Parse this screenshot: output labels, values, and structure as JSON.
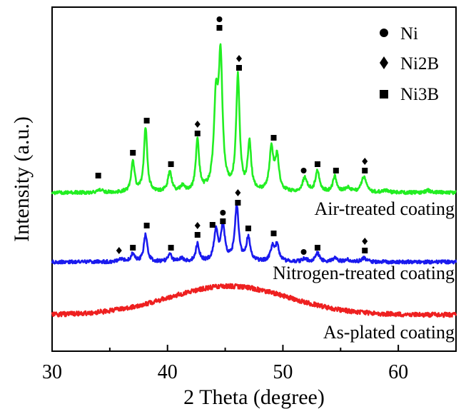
{
  "chart_data": {
    "type": "line",
    "xlabel": "2 Theta (degree)",
    "ylabel": "Intensity (a.u.)",
    "xlim": [
      30,
      65
    ],
    "x_ticks": [
      "30",
      "40",
      "50",
      "60"
    ],
    "y_ticks_shown": false,
    "legend": {
      "placement": "top-right",
      "entries": [
        {
          "marker": "circle",
          "label_parts": [
            "Ni"
          ]
        },
        {
          "marker": "diamond",
          "label_parts": [
            "Ni",
            "2",
            "B"
          ]
        },
        {
          "marker": "square",
          "label_parts": [
            "Ni",
            "3",
            "B"
          ]
        }
      ]
    },
    "series": [
      {
        "name": "Air-treated coating",
        "color": "#22ee22",
        "baseline_y": 270,
        "peaks": [
          {
            "x": 34.2,
            "h": 4,
            "w": 0.25
          },
          {
            "x": 37.0,
            "h": 42,
            "w": 0.18
          },
          {
            "x": 38.1,
            "h": 90,
            "w": 0.17
          },
          {
            "x": 40.2,
            "h": 28,
            "w": 0.2
          },
          {
            "x": 41.3,
            "h": 8,
            "w": 0.2
          },
          {
            "x": 42.6,
            "h": 72,
            "w": 0.17
          },
          {
            "x": 44.2,
            "h": 118,
            "w": 0.22
          },
          {
            "x": 44.6,
            "h": 175,
            "w": 0.2
          },
          {
            "x": 46.1,
            "h": 160,
            "w": 0.18
          },
          {
            "x": 47.1,
            "h": 68,
            "w": 0.18
          },
          {
            "x": 49.0,
            "h": 60,
            "w": 0.2
          },
          {
            "x": 49.5,
            "h": 48,
            "w": 0.2
          },
          {
            "x": 51.9,
            "h": 20,
            "w": 0.25
          },
          {
            "x": 53.0,
            "h": 30,
            "w": 0.2
          },
          {
            "x": 54.5,
            "h": 22,
            "w": 0.2
          },
          {
            "x": 55.6,
            "h": 7,
            "w": 0.25
          },
          {
            "x": 57.0,
            "h": 22,
            "w": 0.25
          },
          {
            "x": 58.8,
            "h": 3,
            "w": 0.3
          },
          {
            "x": 62.6,
            "h": 3,
            "w": 0.3
          }
        ],
        "markers": [
          {
            "x": 34.0,
            "y": 246,
            "type": "square"
          },
          {
            "x": 37.0,
            "y": 214,
            "type": "square"
          },
          {
            "x": 38.2,
            "y": 169,
            "type": "square"
          },
          {
            "x": 40.3,
            "y": 230,
            "type": "square"
          },
          {
            "x": 42.6,
            "y": 174,
            "type": "diamond"
          },
          {
            "x": 42.6,
            "y": 187,
            "type": "square"
          },
          {
            "x": 44.5,
            "y": 27,
            "type": "circle"
          },
          {
            "x": 44.5,
            "y": 39,
            "type": "square"
          },
          {
            "x": 46.2,
            "y": 82,
            "type": "diamond"
          },
          {
            "x": 46.2,
            "y": 95,
            "type": "square"
          },
          {
            "x": 49.2,
            "y": 193,
            "type": "square"
          },
          {
            "x": 51.8,
            "y": 239,
            "type": "circle"
          },
          {
            "x": 53.0,
            "y": 230,
            "type": "square"
          },
          {
            "x": 54.6,
            "y": 239,
            "type": "square"
          },
          {
            "x": 57.1,
            "y": 226,
            "type": "diamond"
          },
          {
            "x": 57.1,
            "y": 239,
            "type": "square"
          }
        ]
      },
      {
        "name": "Nitrogen-treated coating",
        "color": "#1a1aee",
        "baseline_y": 367,
        "peaks": [
          {
            "x": 36.0,
            "h": 4,
            "w": 0.25
          },
          {
            "x": 37.0,
            "h": 11,
            "w": 0.2
          },
          {
            "x": 38.1,
            "h": 38,
            "w": 0.18
          },
          {
            "x": 40.2,
            "h": 10,
            "w": 0.2
          },
          {
            "x": 41.2,
            "h": 5,
            "w": 0.2
          },
          {
            "x": 42.6,
            "h": 25,
            "w": 0.18
          },
          {
            "x": 44.2,
            "h": 42,
            "w": 0.2
          },
          {
            "x": 44.8,
            "h": 50,
            "w": 0.2
          },
          {
            "x": 46.0,
            "h": 77,
            "w": 0.2
          },
          {
            "x": 47.0,
            "h": 33,
            "w": 0.2
          },
          {
            "x": 49.1,
            "h": 20,
            "w": 0.2
          },
          {
            "x": 49.5,
            "h": 22,
            "w": 0.2
          },
          {
            "x": 51.9,
            "h": 4,
            "w": 0.25
          },
          {
            "x": 53.0,
            "h": 12,
            "w": 0.2
          },
          {
            "x": 54.5,
            "h": 5,
            "w": 0.25
          },
          {
            "x": 55.6,
            "h": 3,
            "w": 0.25
          },
          {
            "x": 57.0,
            "h": 5,
            "w": 0.25
          }
        ],
        "markers": [
          {
            "x": 35.8,
            "y": 351,
            "type": "diamond"
          },
          {
            "x": 37.0,
            "y": 347,
            "type": "square"
          },
          {
            "x": 38.2,
            "y": 316,
            "type": "square"
          },
          {
            "x": 40.3,
            "y": 347,
            "type": "square"
          },
          {
            "x": 42.6,
            "y": 316,
            "type": "diamond"
          },
          {
            "x": 42.6,
            "y": 329,
            "type": "square"
          },
          {
            "x": 43.9,
            "y": 315,
            "type": "square"
          },
          {
            "x": 44.8,
            "y": 298,
            "type": "circle"
          },
          {
            "x": 44.8,
            "y": 310,
            "type": "square"
          },
          {
            "x": 46.1,
            "y": 270,
            "type": "diamond"
          },
          {
            "x": 46.1,
            "y": 284,
            "type": "square"
          },
          {
            "x": 47.0,
            "y": 320,
            "type": "square"
          },
          {
            "x": 49.2,
            "y": 327,
            "type": "square"
          },
          {
            "x": 51.8,
            "y": 353,
            "type": "circle"
          },
          {
            "x": 53.0,
            "y": 347,
            "type": "square"
          },
          {
            "x": 57.1,
            "y": 338,
            "type": "diamond"
          },
          {
            "x": 57.1,
            "y": 351,
            "type": "square"
          }
        ]
      },
      {
        "name": "As-plated coating",
        "color": "#ee2020",
        "baseline_y": 441,
        "broad_hump": {
          "center": 45.3,
          "height": 40,
          "width": 5.2
        },
        "peaks": [],
        "markers": []
      }
    ]
  }
}
